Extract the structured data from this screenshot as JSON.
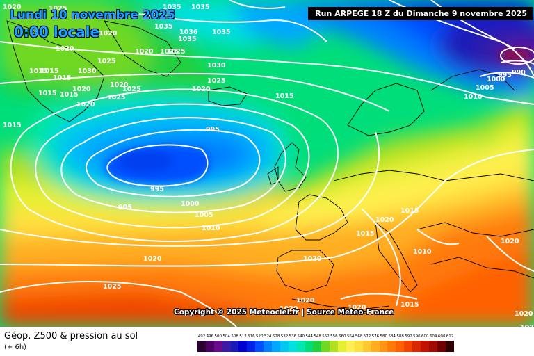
{
  "header": {
    "date": "Lundi 10 novembre 2025",
    "time": "0:00 locale",
    "run": "Run ARPEGE 18 Z du Dimanche 9 novembre 2025"
  },
  "copyright": "Copyright © 2025 Meteociel.fr | Source Meteo-France",
  "footer": {
    "title": "Géop. Z500 & pression au sol",
    "subtitle": "(+ 6h)"
  },
  "legend": {
    "ticks": [
      "492",
      "496",
      "500",
      "504",
      "508",
      "512",
      "516",
      "520",
      "524",
      "528",
      "532",
      "536",
      "540",
      "544",
      "548",
      "552",
      "556",
      "560",
      "564",
      "568",
      "572",
      "576",
      "580",
      "584",
      "588",
      "592",
      "596",
      "600",
      "604",
      "608",
      "612"
    ],
    "colors": [
      "#2a0033",
      "#4b0063",
      "#6a0b8c",
      "#3b1aa6",
      "#1a1ab8",
      "#0000d0",
      "#0022e6",
      "#0050ff",
      "#0080ff",
      "#00a8ff",
      "#00c8f0",
      "#00e0e0",
      "#00e6b0",
      "#00de7a",
      "#20d040",
      "#70d820",
      "#b0e020",
      "#e6f030",
      "#fff050",
      "#ffe040",
      "#ffc830",
      "#ffae20",
      "#ff9410",
      "#ff7a08",
      "#ff6000",
      "#f04400",
      "#d82800",
      "#c01400",
      "#a00a00",
      "#700000",
      "#300000"
    ]
  },
  "pressure_labels": [
    {
      "text": "1020"
    },
    {
      "text": "1025"
    },
    {
      "text": "1035"
    },
    {
      "text": "1035"
    },
    {
      "text": "1020"
    },
    {
      "text": "1035"
    },
    {
      "text": "1036"
    },
    {
      "text": "1035"
    },
    {
      "text": "1035"
    },
    {
      "text": "1025"
    },
    {
      "text": "1020"
    },
    {
      "text": "1025"
    },
    {
      "text": "1020"
    },
    {
      "text": "1025"
    },
    {
      "text": "1030"
    },
    {
      "text": "1015"
    },
    {
      "text": "1015"
    },
    {
      "text": "1030"
    },
    {
      "text": "1025"
    },
    {
      "text": "1015"
    },
    {
      "text": "1020"
    },
    {
      "text": "1025"
    },
    {
      "text": "1015"
    },
    {
      "text": "1015"
    },
    {
      "text": "1020"
    },
    {
      "text": "1020"
    },
    {
      "text": "1025"
    },
    {
      "text": "1020"
    },
    {
      "text": "1015"
    },
    {
      "text": "1015"
    },
    {
      "text": "1010"
    },
    {
      "text": "1005"
    },
    {
      "text": "1000"
    },
    {
      "text": "995"
    },
    {
      "text": "990"
    },
    {
      "text": "995"
    },
    {
      "text": "995"
    },
    {
      "text": "995"
    },
    {
      "text": "1000"
    },
    {
      "text": "1005"
    },
    {
      "text": "1010"
    },
    {
      "text": "1020"
    },
    {
      "text": "1020"
    },
    {
      "text": "1015"
    },
    {
      "text": "1010"
    },
    {
      "text": "1020"
    },
    {
      "text": "1020"
    },
    {
      "text": "1025"
    },
    {
      "text": "1020"
    },
    {
      "text": "1020"
    },
    {
      "text": "1020"
    },
    {
      "text": "1015"
    },
    {
      "text": "1020"
    },
    {
      "text": "1020"
    },
    {
      "text": "1015"
    }
  ]
}
